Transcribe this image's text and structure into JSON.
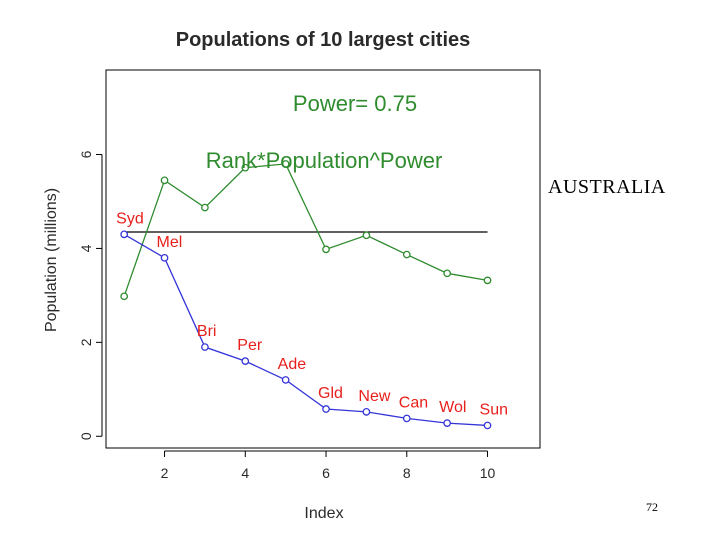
{
  "slide": {
    "side_label": "AUSTRALIA",
    "page_number": "72"
  },
  "colors": {
    "green": "#2e8b2e",
    "blue": "#3535d8",
    "red": "#e8201c",
    "black": "#000000",
    "frame": "#000000"
  },
  "chart_data": {
    "type": "line",
    "title": "Populations of 10 largest cities",
    "xlabel": "Index",
    "ylabel": "Population (millions)",
    "xlim": [
      0.55,
      11.3
    ],
    "ylim": [
      -0.25,
      7.8
    ],
    "xticks": [
      2,
      4,
      6,
      8,
      10
    ],
    "xtick_labels": [
      "2",
      "4",
      "6",
      "8",
      "10"
    ],
    "yticks": [
      0,
      2,
      4,
      6
    ],
    "ytick_labels": [
      "0",
      "2",
      "4",
      "6"
    ],
    "annotations": {
      "power": "Power= 0.75",
      "formula": "Rank*Population^Power"
    },
    "reference_line": {
      "y": 4.35,
      "x_from": 1,
      "x_to": 10
    },
    "series": [
      {
        "name": "Rank*Population^Power",
        "x": [
          1,
          2,
          3,
          4,
          5,
          6,
          7,
          8,
          9,
          10
        ],
        "values": [
          2.98,
          5.45,
          4.87,
          5.72,
          5.8,
          3.98,
          4.28,
          3.87,
          3.47,
          3.32
        ]
      },
      {
        "name": "Population",
        "x": [
          1,
          2,
          3,
          4,
          5,
          6,
          7,
          8,
          9,
          10
        ],
        "values": [
          4.3,
          3.8,
          1.9,
          1.6,
          1.2,
          0.58,
          0.52,
          0.38,
          0.28,
          0.23
        ]
      }
    ],
    "city_labels": [
      "Syd",
      "Mel",
      "Bri",
      "Per",
      "Ade",
      "Gld",
      "New",
      "Can",
      "Wol",
      "Sun"
    ]
  }
}
